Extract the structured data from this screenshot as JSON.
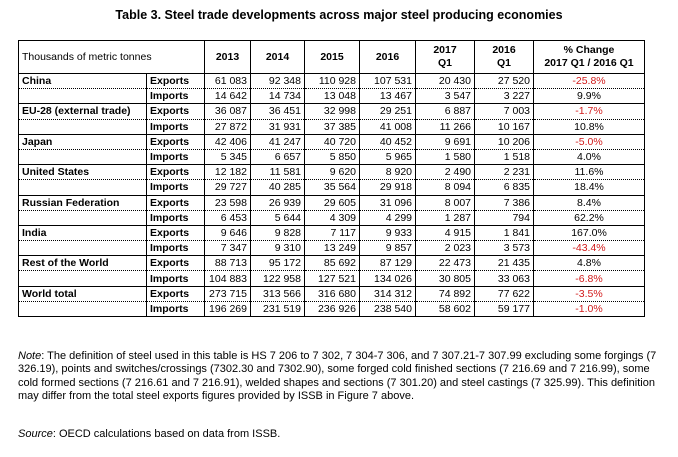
{
  "title": "Table 3.   Steel trade developments across major steel producing economies",
  "table": {
    "unit_label": "Thousands of metric tonnes",
    "columns": [
      "2013",
      "2014",
      "2015",
      "2016",
      "2017\nQ1",
      "2016\nQ1",
      "% Change\n2017 Q1 / 2016 Q1"
    ],
    "rows": [
      {
        "country": "China",
        "exports": [
          "61 083",
          "92 348",
          "110 928",
          "107 531",
          "20 430",
          "27 520",
          "-25.8%"
        ],
        "imports": [
          "14 642",
          "14 734",
          "13 048",
          "13 467",
          "3 547",
          "3 227",
          "9.9%"
        ]
      },
      {
        "country": "EU-28 (external trade)",
        "exports": [
          "36 087",
          "36 451",
          "32 998",
          "29 251",
          "6 887",
          "7 003",
          "-1.7%"
        ],
        "imports": [
          "27 872",
          "31 931",
          "37 385",
          "41 008",
          "11 266",
          "10 167",
          "10.8%"
        ]
      },
      {
        "country": "Japan",
        "exports": [
          "42 406",
          "41 247",
          "40 720",
          "40 452",
          "9 691",
          "10 206",
          "-5.0%"
        ],
        "imports": [
          "5 345",
          "6 657",
          "5 850",
          "5 965",
          "1 580",
          "1 518",
          "4.0%"
        ]
      },
      {
        "country": "United States",
        "exports": [
          "12 182",
          "11 581",
          "9 620",
          "8 920",
          "2 490",
          "2 231",
          "11.6%"
        ],
        "imports": [
          "29 727",
          "40 285",
          "35 564",
          "29 918",
          "8 094",
          "6 835",
          "18.4%"
        ]
      },
      {
        "country": "Russian Federation",
        "exports": [
          "23 598",
          "26 939",
          "29 605",
          "31 096",
          "8 007",
          "7 386",
          "8.4%"
        ],
        "imports": [
          "6 453",
          "5 644",
          "4 309",
          "4 299",
          "1 287",
          "794",
          "62.2%"
        ]
      },
      {
        "country": "India",
        "exports": [
          "9 646",
          "9 828",
          "7 117",
          "9 933",
          "4 915",
          "1 841",
          "167.0%"
        ],
        "imports": [
          "7 347",
          "9 310",
          "13 249",
          "9 857",
          "2 023",
          "3 573",
          "-43.4%"
        ]
      },
      {
        "country": "Rest of the World",
        "exports": [
          "88 713",
          "95 172",
          "85 692",
          "87 129",
          "22 473",
          "21 435",
          "4.8%"
        ],
        "imports": [
          "104 883",
          "122 958",
          "127 521",
          "134 026",
          "30 805",
          "33 063",
          "-6.8%"
        ]
      },
      {
        "country": "World total",
        "exports": [
          "273 715",
          "313 566",
          "316 680",
          "314 312",
          "74 892",
          "77 622",
          "-3.5%"
        ],
        "imports": [
          "196 269",
          "231 519",
          "236 926",
          "238 540",
          "58 602",
          "59 177",
          "-1.0%"
        ]
      }
    ],
    "exports_label": "Exports",
    "imports_label": "Imports",
    "negative_color": "#d21b1b"
  },
  "note": {
    "label": "Note",
    "text": ": The definition of steel used in this table is HS 7 206 to 7 302, 7 304-7 306, and 7 307.21-7 307.99 excluding some forgings (7 326.19), points and switches/crossings (7302.30 and 7302.90), some forged cold finished sections (7 216.69 and 7 216.99), some cold formed sections (7 216.61 and 7 216.91), welded shapes and sections (7 301.20) and steel castings (7 325.99). This definition may differ from the total steel exports figures provided by ISSB in Figure 7 above."
  },
  "source": {
    "label": "Source",
    "text": ": OECD calculations based on data from ISSB."
  }
}
